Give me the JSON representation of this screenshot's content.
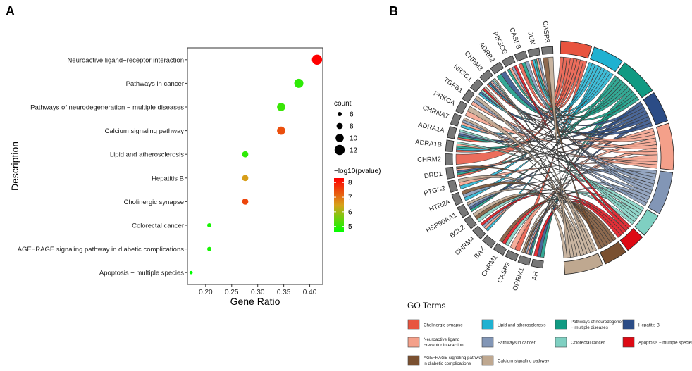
{
  "panels": {
    "a": "A",
    "b": "B"
  },
  "chart_data": [
    {
      "type": "scatter",
      "panel": "A",
      "xlabel": "Gene Ratio",
      "ylabel": "Description",
      "xlim": [
        0.165,
        0.425
      ],
      "xticks": [
        0.2,
        0.25,
        0.3,
        0.35,
        0.4
      ],
      "xtick_labels": [
        "0.20",
        "0.25",
        "0.30",
        "0.35",
        "0.40"
      ],
      "categories": [
        "Neuroactive ligand−receptor interaction",
        "Pathways in cancer",
        "Pathways of neurodegeneration − multiple diseases",
        "Calcium signaling pathway",
        "Lipid and atherosclerosis",
        "Hepatitis B",
        "Cholinergic synapse",
        "Colorectal cancer",
        "AGE−RAGE signaling pathway in diabetic complications",
        "Apoptosis − multiple species"
      ],
      "points": [
        {
          "gene_ratio": 0.414,
          "count": 12,
          "neg_log10_p": 8.3
        },
        {
          "gene_ratio": 0.379,
          "count": 11,
          "neg_log10_p": 5.0
        },
        {
          "gene_ratio": 0.345,
          "count": 10,
          "neg_log10_p": 5.1
        },
        {
          "gene_ratio": 0.345,
          "count": 10,
          "neg_log10_p": 7.4
        },
        {
          "gene_ratio": 0.276,
          "count": 8,
          "neg_log10_p": 5.0
        },
        {
          "gene_ratio": 0.276,
          "count": 8,
          "neg_log10_p": 6.5
        },
        {
          "gene_ratio": 0.276,
          "count": 8,
          "neg_log10_p": 7.5
        },
        {
          "gene_ratio": 0.207,
          "count": 6,
          "neg_log10_p": 4.8
        },
        {
          "gene_ratio": 0.207,
          "count": 6,
          "neg_log10_p": 4.8
        },
        {
          "gene_ratio": 0.172,
          "count": 5,
          "neg_log10_p": 4.5
        }
      ],
      "size_legend": {
        "title": "count",
        "values": [
          6,
          8,
          10,
          12
        ],
        "labels": [
          "6",
          "8",
          "10",
          "12"
        ]
      },
      "color_legend": {
        "title": "−log10(pvalue)",
        "range": [
          4.6,
          8.3
        ],
        "ticks": [
          5,
          6,
          7,
          8
        ],
        "tick_labels": [
          "5",
          "6",
          "7",
          "8"
        ],
        "low_color": "#00ff00",
        "mid_color": "#d6a21a",
        "high_color": "#ff0000"
      },
      "grid": true
    },
    {
      "type": "chord",
      "panel": "B",
      "genes": [
        "CASP3",
        "JUN",
        "CASP8",
        "PIK3CG",
        "ADRB2",
        "CHRM3",
        "NR3C1",
        "TGFB1",
        "PRKCA",
        "CHRNA7",
        "ADRA1A",
        "ADRA1B",
        "CHRM2",
        "DRD1",
        "PTGS2",
        "HTR2A",
        "HSP90AA1",
        "BCL2",
        "CHRM4",
        "BAX",
        "CHRM1",
        "CASP9",
        "OPRM1",
        "AR"
      ],
      "gene_color": "#777777",
      "terms": [
        {
          "name": "Cholinergic synapse",
          "color": "#e8543f",
          "size": 8
        },
        {
          "name": "Lipid and atherosclerosis",
          "color": "#1fb1d1",
          "size": 8
        },
        {
          "name": "Pathways of neurodegeneration − multiple diseases",
          "color": "#109a82",
          "size": 10
        },
        {
          "name": "Hepatitis B",
          "color": "#2b4c86",
          "size": 8
        },
        {
          "name": "Neuroactive ligand−receptor interaction",
          "color": "#f4a08a",
          "size": 12
        },
        {
          "name": "Pathways in cancer",
          "color": "#8296b6",
          "size": 11
        },
        {
          "name": "Colorectal cancer",
          "color": "#7fd0c2",
          "size": 6
        },
        {
          "name": "Apoptosis − multiple species",
          "color": "#dd0a14",
          "size": 5
        },
        {
          "name": "AGE−RAGE signaling pathway in diabetic complications",
          "color": "#7a5030",
          "size": 6
        },
        {
          "name": "Calcium signaling pathway",
          "color": "#bfa890",
          "size": 10
        }
      ],
      "legend": {
        "title": "GO Terms",
        "items": [
          {
            "label": "Cholinergic synapse",
            "color": "#e8543f",
            "lines": [
              "Cholinergic synapse"
            ]
          },
          {
            "label": "Lipid and atherosclerosis",
            "color": "#1fb1d1",
            "lines": [
              "Lipid and atherosclerosis"
            ]
          },
          {
            "label": "Pathways of neurodegeneration − multiple diseases",
            "color": "#109a82",
            "lines": [
              "Pathways of neurodegeneration",
              "− multiple diseases"
            ]
          },
          {
            "label": "Hepatitis B",
            "color": "#2b4c86",
            "lines": [
              "Hepatitis B"
            ]
          },
          {
            "label": "Neuroactive ligand −receptor interaction",
            "color": "#f4a08a",
            "lines": [
              "Neuroactive ligand",
              "−receptor interaction"
            ]
          },
          {
            "label": "Pathways in cancer",
            "color": "#8296b6",
            "lines": [
              "Pathways in cancer"
            ]
          },
          {
            "label": "Colorectal cancer",
            "color": "#7fd0c2",
            "lines": [
              "Colorectal cancer"
            ]
          },
          {
            "label": "Apoptosis − multiple species",
            "color": "#dd0a14",
            "lines": [
              "Apoptosis − multiple species"
            ]
          },
          {
            "label": "AGE−RAGE signaling pathway in diabetic complications",
            "color": "#7a5030",
            "lines": [
              "AGE−RAGE signaling pathway",
              "in diabetic complications"
            ]
          },
          {
            "label": "Calcium signaling pathway",
            "color": "#bfa890",
            "lines": [
              "Calcium signaling pathway"
            ]
          }
        ]
      }
    }
  ]
}
